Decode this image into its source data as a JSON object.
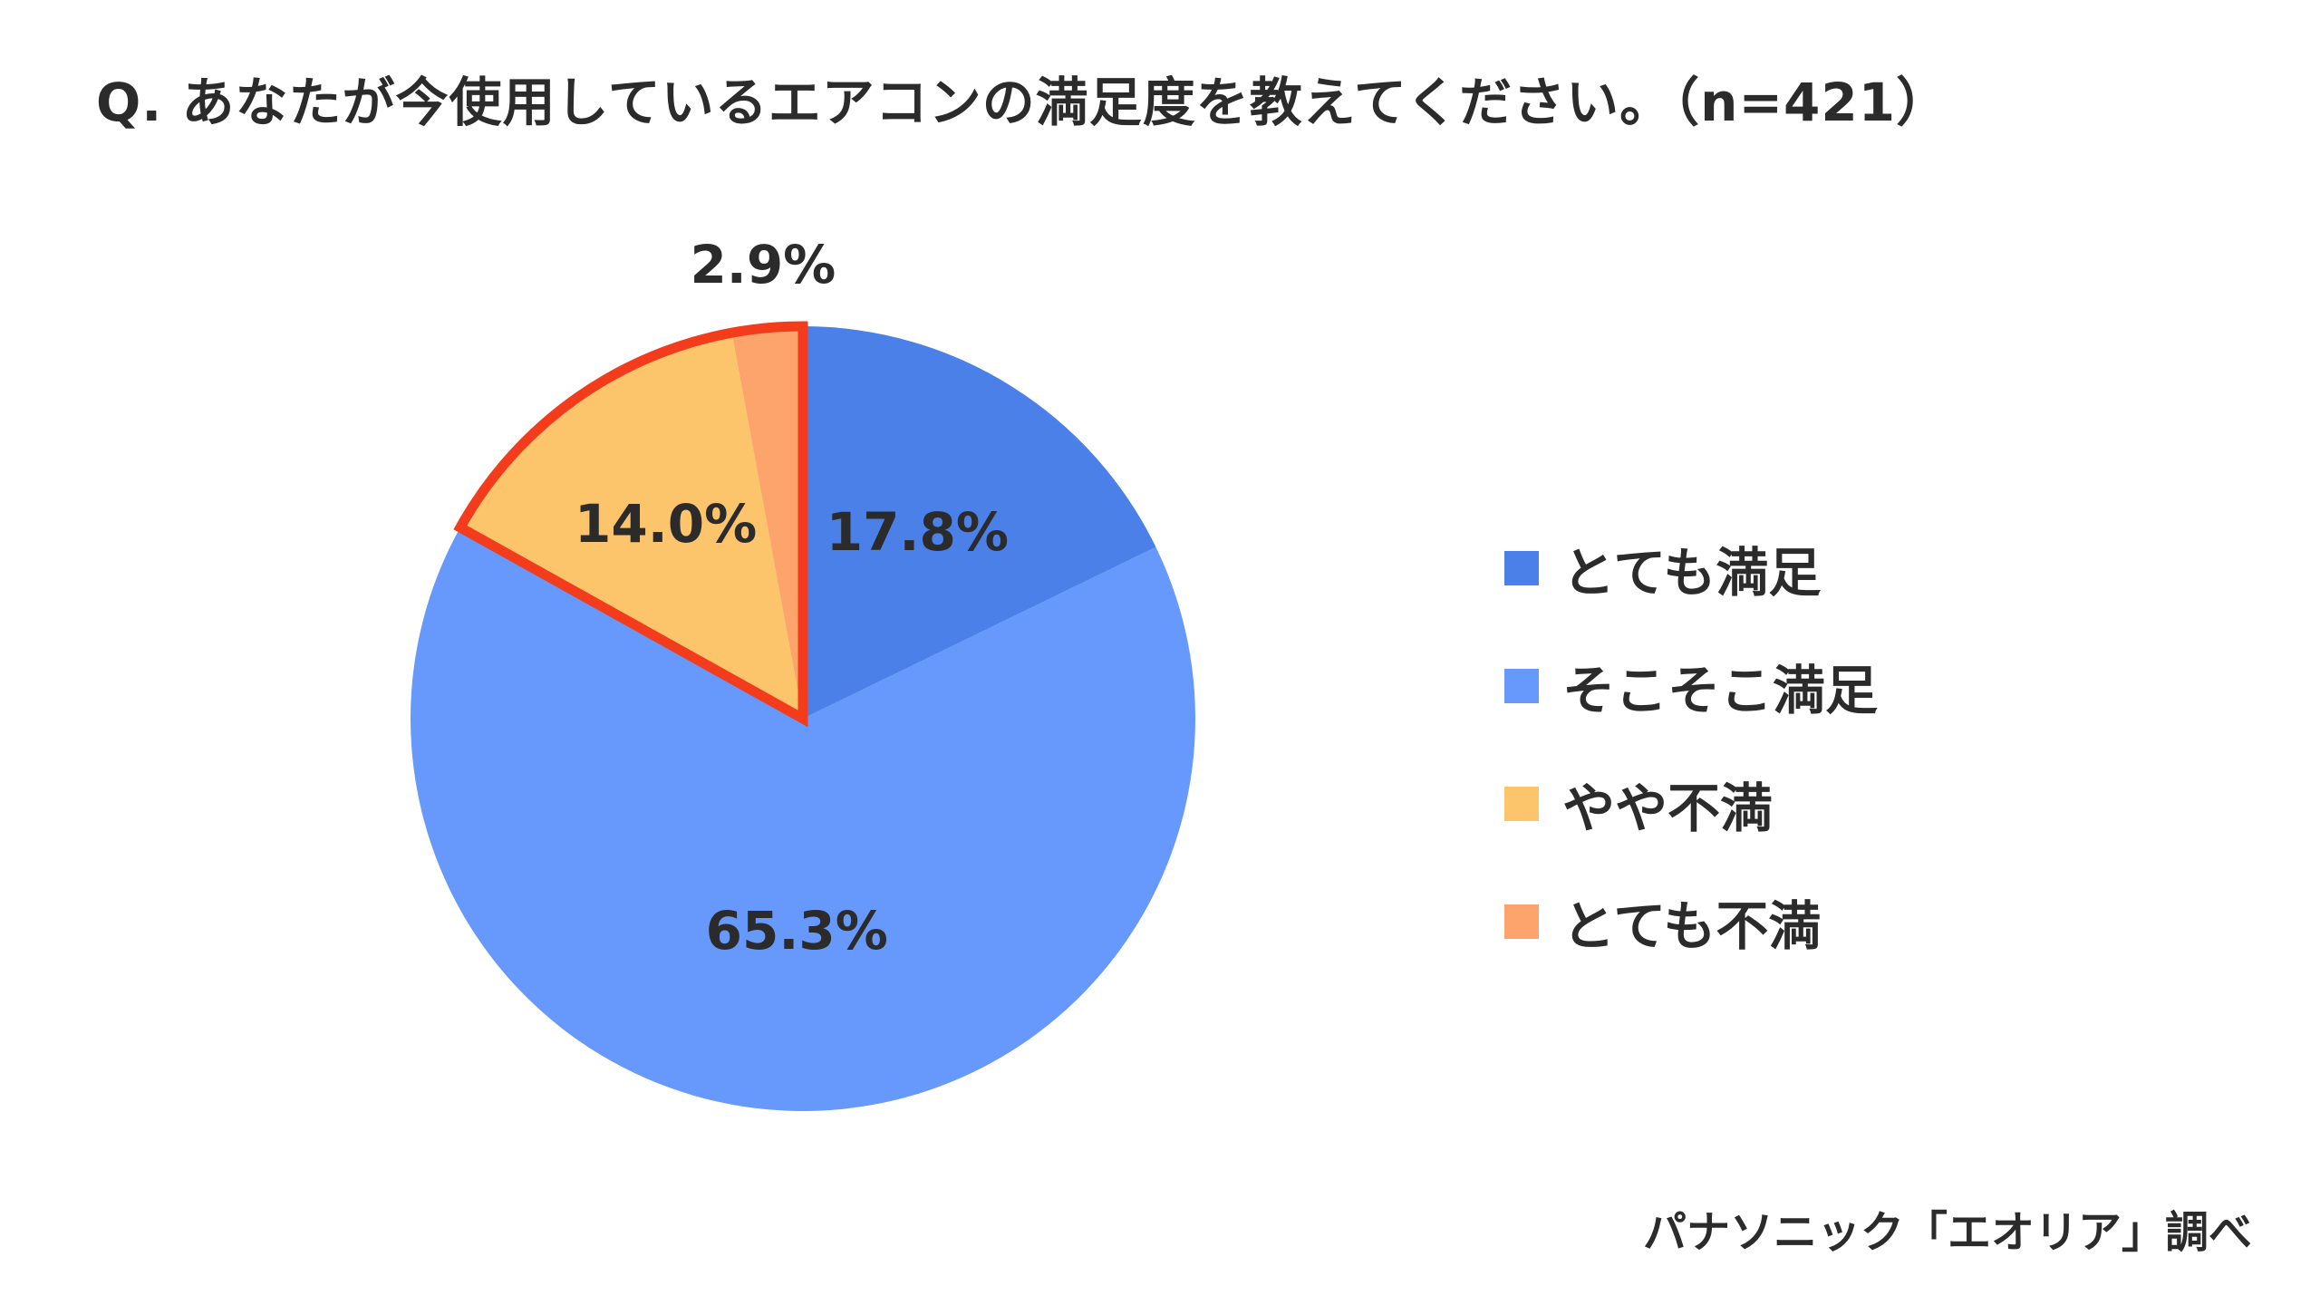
{
  "title": "Q. あなたが今使用しているエアコンの満足度を教えてください。（n=421）",
  "source": "パナソニック「エオリア」調べ",
  "chart_data": {
    "type": "pie",
    "title": "Q. あなたが今使用しているエアコンの満足度を教えてください。（n=421）",
    "start": "12 o'clock, clockwise",
    "legend_position": "right",
    "slices": [
      {
        "label": "とても満足",
        "value": 17.8,
        "display": "17.8%",
        "color": "#4a80e8",
        "highlighted": false
      },
      {
        "label": "そこそこ満足",
        "value": 65.3,
        "display": "65.3%",
        "color": "#6699fb",
        "highlighted": false
      },
      {
        "label": "やや不満",
        "value": 14.0,
        "display": "14.0%",
        "color": "#fdc56b",
        "highlighted": true
      },
      {
        "label": "とても不満",
        "value": 2.9,
        "display": "2.9%",
        "color": "#fca46b",
        "highlighted": true
      }
    ],
    "highlight_outline_color": "#f23c1c"
  }
}
